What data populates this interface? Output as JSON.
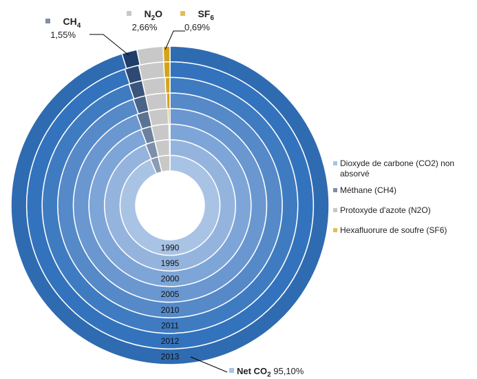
{
  "chart_data": {
    "type": "donut",
    "rings": [
      {
        "year": "1990",
        "values": [
          93.6,
          2.6,
          3.8,
          0.0
        ]
      },
      {
        "year": "1995",
        "values": [
          93.9,
          2.4,
          3.6,
          0.1
        ]
      },
      {
        "year": "2000",
        "values": [
          94.2,
          2.1,
          3.5,
          0.2
        ]
      },
      {
        "year": "2005",
        "values": [
          94.4,
          2.0,
          3.3,
          0.3
        ]
      },
      {
        "year": "2010",
        "values": [
          94.7,
          1.8,
          3.0,
          0.5
        ]
      },
      {
        "year": "2011",
        "values": [
          94.8,
          1.7,
          2.9,
          0.6
        ]
      },
      {
        "year": "2012",
        "values": [
          94.9,
          1.6,
          2.8,
          0.7
        ]
      },
      {
        "year": "2013",
        "values": [
          95.1,
          1.55,
          2.66,
          0.69
        ]
      }
    ],
    "series": [
      {
        "name": "Dioxyde de carbone (CO2) non absorvé",
        "color": "#4a7fc1"
      },
      {
        "name": "Méthane (CH4)",
        "color": "#1f3f6a"
      },
      {
        "name": "Protoxyde d'azote (N2O)",
        "color": "#c8c8c8"
      },
      {
        "name": "Hexafluorure de soufre (SF6)",
        "color": "#d4a31c"
      }
    ],
    "ring_colors_co2": [
      "#a9c3e4",
      "#95b4dd",
      "#7ea5d7",
      "#6a97d0",
      "#5589c8",
      "#3f7bc1",
      "#3373bd",
      "#2f6bb1"
    ],
    "ring_colors_ch4": [
      "#8a9bb3",
      "#7d8fa9",
      "#6c819e",
      "#5b7393",
      "#4a6488",
      "#3b567d",
      "#2e4a73",
      "#1f3f6a"
    ],
    "legend_position": "right"
  },
  "annotations": {
    "ch4": {
      "gas": "CH",
      "sub": "4",
      "value": "1,55%"
    },
    "n2o": {
      "gas": "N",
      "sub": "2",
      "gas2": "O",
      "value": "2,66%"
    },
    "sf6": {
      "gas": "SF",
      "sub": "6",
      "value": "0,69%"
    },
    "co2": {
      "gas": "Net CO",
      "sub": "2",
      "value": "95,10%"
    }
  }
}
